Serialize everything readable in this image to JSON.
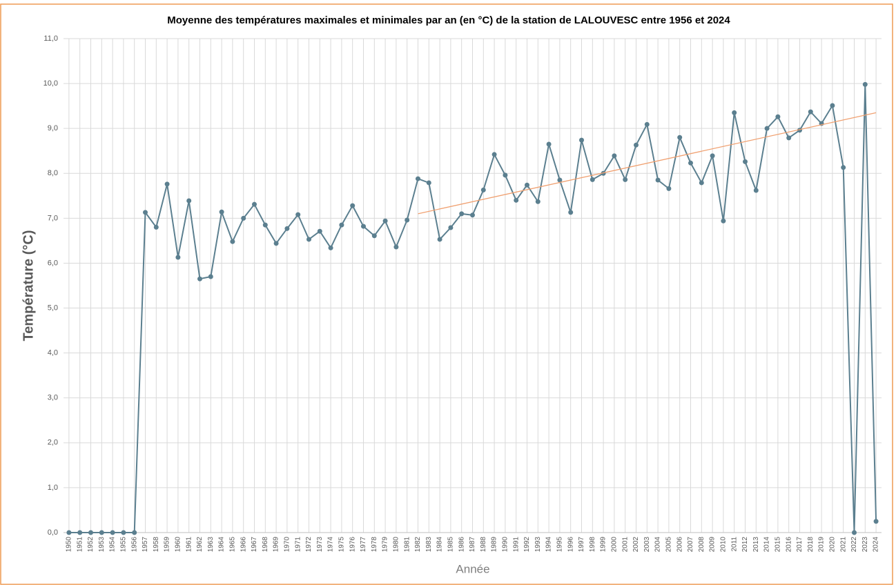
{
  "chart_data": {
    "type": "line",
    "title": "Moyenne des températures maximales et minimales par an (en °C) de la station de LALOUVESC entre 1956 et 2024",
    "x_label": "Année",
    "y_label": "Température  (°C)",
    "categories": [
      "1950",
      "1951",
      "1952",
      "1953",
      "1954",
      "1955",
      "1956",
      "1957",
      "1958",
      "1959",
      "1960",
      "1961",
      "1962",
      "1963",
      "1964",
      "1965",
      "1966",
      "1967",
      "1968",
      "1969",
      "1970",
      "1971",
      "1972",
      "1973",
      "1974",
      "1975",
      "1976",
      "1977",
      "1978",
      "1979",
      "1980",
      "1981",
      "1982",
      "1983",
      "1984",
      "1985",
      "1986",
      "1987",
      "1988",
      "1989",
      "1990",
      "1991",
      "1992",
      "1993",
      "1994",
      "1995",
      "1996",
      "1997",
      "1998",
      "1999",
      "2000",
      "2001",
      "2002",
      "2003",
      "2004",
      "2005",
      "2006",
      "2007",
      "2008",
      "2009",
      "2010",
      "2011",
      "2012",
      "2013",
      "2014",
      "2015",
      "2016",
      "2017",
      "2018",
      "2019",
      "2020",
      "2021",
      "2022",
      "2023",
      "2024"
    ],
    "values": [
      0,
      0,
      0,
      0,
      0,
      0,
      0,
      7.13,
      6.8,
      7.76,
      6.13,
      7.39,
      5.65,
      5.7,
      7.14,
      6.48,
      7.0,
      7.31,
      6.85,
      6.44,
      6.77,
      7.08,
      6.53,
      6.71,
      6.34,
      6.85,
      7.28,
      6.82,
      6.61,
      6.94,
      6.36,
      6.96,
      7.88,
      7.79,
      6.53,
      6.79,
      7.1,
      7.07,
      7.63,
      8.42,
      7.96,
      7.4,
      7.74,
      7.37,
      8.65,
      7.85,
      7.13,
      8.74,
      7.86,
      8.0,
      8.39,
      7.86,
      8.63,
      9.09,
      7.85,
      7.66,
      8.8,
      8.23,
      7.79,
      8.39,
      6.94,
      9.35,
      8.26,
      7.62,
      9.0,
      9.26,
      8.79,
      8.96,
      9.37,
      9.11,
      9.51,
      8.13,
      0,
      9.98,
      0.25
    ],
    "color": "#5b7f8f",
    "trendline": {
      "categories": [
        "1982",
        "2024"
      ],
      "values": [
        7.1,
        9.35
      ],
      "color": "#f0a070"
    },
    "ylim": [
      0,
      11
    ],
    "yticks": [
      {
        "value": 0,
        "label": "0,0"
      },
      {
        "value": 1,
        "label": "1,0"
      },
      {
        "value": 2,
        "label": "2,0"
      },
      {
        "value": 3,
        "label": "3,0"
      },
      {
        "value": 4,
        "label": "4,0"
      },
      {
        "value": 5,
        "label": "5,0"
      },
      {
        "value": 6,
        "label": "6,0"
      },
      {
        "value": 7,
        "label": "7,0"
      },
      {
        "value": 8,
        "label": "8,0"
      },
      {
        "value": 9,
        "label": "9,0"
      },
      {
        "value": 10,
        "label": "10,0"
      },
      {
        "value": 11,
        "label": "11,0"
      }
    ],
    "grid": true
  }
}
